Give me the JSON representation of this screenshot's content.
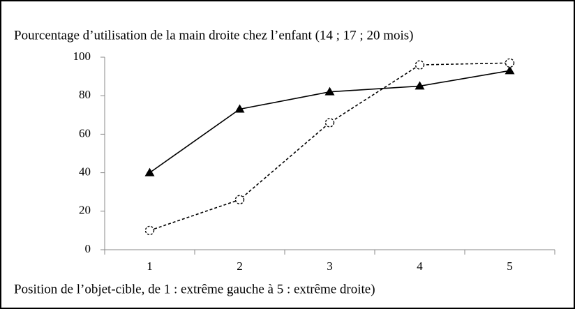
{
  "chart_data": {
    "type": "line",
    "title": "Pourcentage d’utilisation de la main droite  chez l’enfant (14 ; 17 ; 20 mois)",
    "x_label": "Position de l’objet-cible, de 1 : extrême gauche à 5 : extrême droite)",
    "categories": [
      "1",
      "2",
      "3",
      "4",
      "5"
    ],
    "series": [
      {
        "color": "#000000",
        "line_style": "solid",
        "marker": "triangle",
        "values": [
          40,
          73,
          82,
          85,
          93
        ]
      },
      {
        "color": "#000000",
        "line_style": "dashed",
        "marker": "circle",
        "values": [
          10,
          26,
          66,
          96,
          97
        ]
      }
    ],
    "ylim": [
      0,
      100
    ],
    "yticks": [
      0,
      20,
      40,
      60,
      80,
      100
    ],
    "grid": false
  }
}
